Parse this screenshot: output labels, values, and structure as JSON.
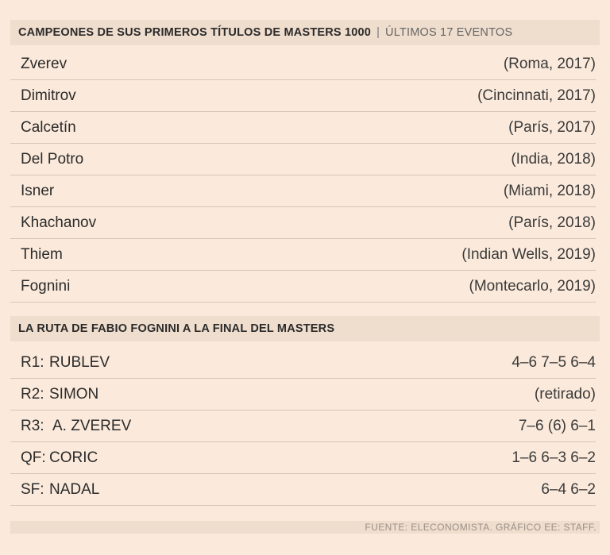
{
  "section1": {
    "title": "CAMPEONES DE SUS PRIMEROS TÍTULOS DE MASTERS 1000",
    "separator": "|",
    "subtitle": "ÚLTIMOS 17 EVENTOS",
    "rows": [
      {
        "name": "Zverev",
        "event": "(Roma, 2017)"
      },
      {
        "name": "Dimitrov",
        "event": "(Cincinnati, 2017)"
      },
      {
        "name": "Calcetín",
        "event": "(París, 2017)"
      },
      {
        "name": "Del Potro",
        "event": "(India, 2018)"
      },
      {
        "name": "Isner",
        "event": "(Miami, 2018)"
      },
      {
        "name": "Khachanov",
        "event": "(París, 2018)"
      },
      {
        "name": "Thiem",
        "event": "(Indian Wells, 2019)"
      },
      {
        "name": "Fognini",
        "event": "(Montecarlo, 2019)"
      }
    ]
  },
  "section2": {
    "title": "LA RUTA DE FABIO FOGNINI A LA FINAL DEL MASTERS",
    "rows": [
      {
        "round": "R1:",
        "opponent": "RUBLEV",
        "score": "4–6 7–5 6–4"
      },
      {
        "round": "R2:",
        "opponent": "SIMON",
        "score": "(retirado)"
      },
      {
        "round": "R3:",
        "opponent": "A. ZVEREV",
        "score": "7–6 (6) 6–1"
      },
      {
        "round": "QF:",
        "opponent": "CORIC",
        "score": "1–6 6–3 6–2"
      },
      {
        "round": "SF:",
        "opponent": "NADAL",
        "score": "6–4 6–2"
      }
    ]
  },
  "footer": {
    "source": "FUENTE: ELECONOMISTA. GRÁFICO EE: STAFF."
  }
}
